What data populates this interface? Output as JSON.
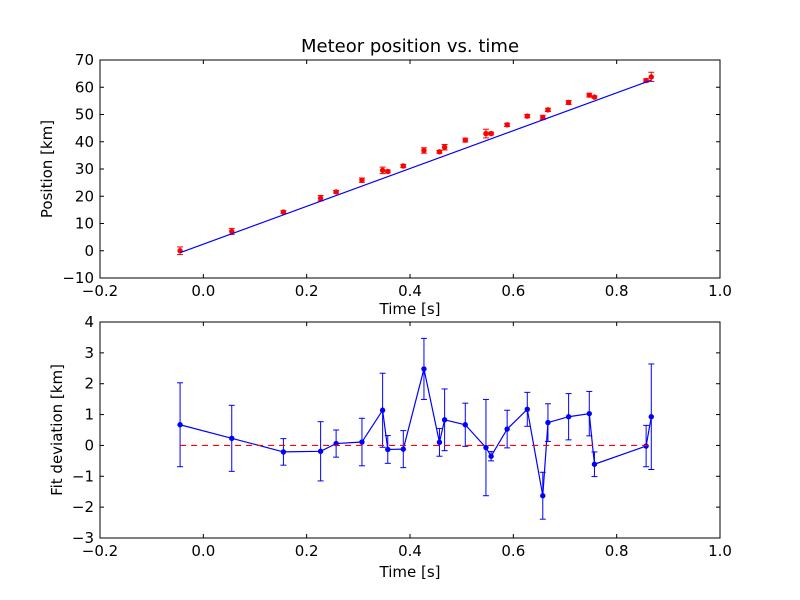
{
  "chart_data": [
    {
      "type": "scatter",
      "title": "Meteor position vs. time",
      "xlabel": "Time [s]",
      "ylabel": "Position [km]",
      "xlim": [
        -0.2,
        1.0
      ],
      "ylim": [
        -10,
        70
      ],
      "xticks": [
        "−0.2",
        "0.0",
        "0.2",
        "0.4",
        "0.6",
        "0.8",
        "1.0"
      ],
      "yticks": [
        "−10",
        "0",
        "10",
        "20",
        "30",
        "40",
        "50",
        "60",
        "70"
      ],
      "grid": false,
      "series": [
        {
          "kind": "errorbar-points",
          "color": "#ff0000",
          "x": [
            -0.045,
            0.055,
            0.155,
            0.227,
            0.257,
            0.307,
            0.347,
            0.357,
            0.387,
            0.427,
            0.457,
            0.467,
            0.507,
            0.547,
            0.557,
            0.588,
            0.627,
            0.657,
            0.667,
            0.707,
            0.747,
            0.757,
            0.857,
            0.867
          ],
          "y": [
            0.0,
            7.1,
            14.2,
            19.3,
            21.6,
            25.9,
            29.5,
            29.1,
            31.1,
            36.8,
            36.3,
            38.0,
            40.6,
            43.0,
            43.0,
            46.2,
            49.4,
            48.9,
            51.7,
            54.4,
            57.1,
            56.4,
            62.5,
            63.8
          ],
          "yerr": [
            1.4,
            1.1,
            0.5,
            1.0,
            0.5,
            0.8,
            1.2,
            0.5,
            0.6,
            1.0,
            0.5,
            1.0,
            0.7,
            1.6,
            0.5,
            0.6,
            0.6,
            0.8,
            0.6,
            0.7,
            0.7,
            0.4,
            0.6,
            1.7
          ]
        },
        {
          "kind": "fit-line",
          "color": "#0000ff",
          "x": [
            -0.045,
            0.867
          ],
          "y": [
            -0.7,
            62.6
          ]
        }
      ]
    },
    {
      "type": "line",
      "title": "",
      "xlabel": "Time [s]",
      "ylabel": "Fit deviation [km]",
      "xlim": [
        -0.2,
        1.0
      ],
      "ylim": [
        -3,
        4
      ],
      "xticks": [
        "−0.2",
        "0.0",
        "0.2",
        "0.4",
        "0.6",
        "0.8",
        "1.0"
      ],
      "yticks": [
        "−3",
        "−2",
        "−1",
        "0",
        "1",
        "2",
        "3",
        "4"
      ],
      "grid": false,
      "series": [
        {
          "kind": "errorbar-line",
          "color": "#0000ff",
          "x": [
            -0.045,
            0.055,
            0.155,
            0.227,
            0.257,
            0.307,
            0.347,
            0.357,
            0.387,
            0.427,
            0.457,
            0.467,
            0.507,
            0.547,
            0.557,
            0.588,
            0.627,
            0.657,
            0.667,
            0.707,
            0.747,
            0.757,
            0.857,
            0.867
          ],
          "y": [
            0.67,
            0.23,
            -0.21,
            -0.19,
            0.06,
            0.11,
            1.14,
            -0.13,
            -0.12,
            2.48,
            0.1,
            0.83,
            0.67,
            -0.07,
            -0.35,
            0.53,
            1.17,
            -1.63,
            0.74,
            0.93,
            1.03,
            -0.61,
            -0.02,
            0.93
          ],
          "yerr": [
            1.36,
            1.07,
            0.43,
            0.96,
            0.44,
            0.77,
            1.2,
            0.45,
            0.6,
            0.99,
            0.45,
            1.0,
            0.7,
            1.56,
            0.15,
            0.61,
            0.55,
            0.76,
            0.61,
            0.75,
            0.72,
            0.4,
            0.67,
            1.71
          ]
        },
        {
          "kind": "reference-line",
          "color": "#ff0000",
          "style": "dashed",
          "x": [
            -0.045,
            0.867
          ],
          "y": [
            0,
            0
          ]
        }
      ]
    }
  ]
}
